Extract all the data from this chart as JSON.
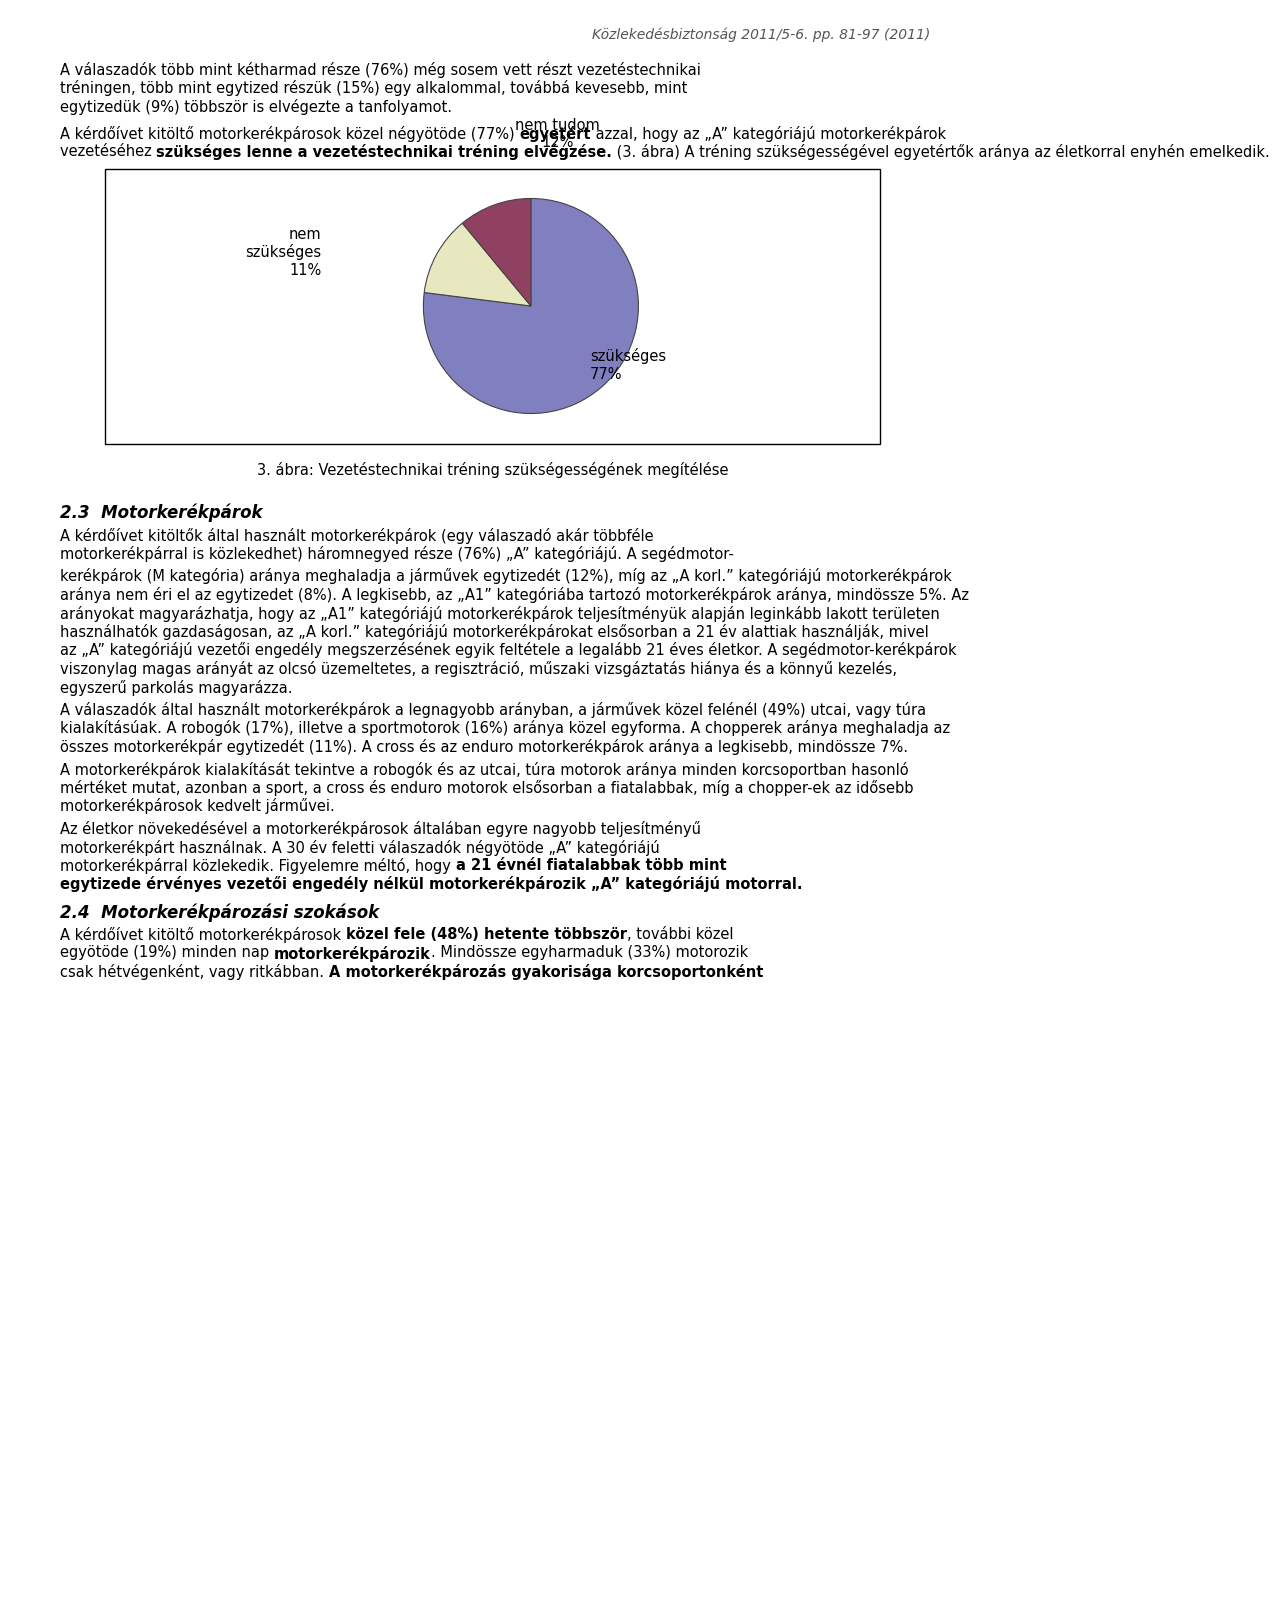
{
  "title_header": "Közlekedésbiztonság 2011/5-6. pp. 81-97 (2011)",
  "p1_lines": [
    "A válaszadók több mint kétharmad része (76%) még sosem vett részt vezetéstechnikai",
    "tréningen, több mint egytized részük (15%) egy alkalommal, továbbá kevesebb, mint",
    "egytizedük (9%) többször is elvégezte a tanfolyamot."
  ],
  "p2_line1_normal": "A kérdőívet kitöltő motorkerékpárosok közel négyötöde (77%) ",
  "p2_line1_bold": "egyetért",
  "p2_line1_normal2": " azzal, hogy az „A” kategóriájú motorkerékpárok",
  "p2_line2_normal": "vezetéséhez ",
  "p2_line2_bold": "szükséges lenne a vezetéstechnikai tréning elvégzése.",
  "p2_line2_normal2": " (3. ábra) A tréning szükségességével egyetértők aránya az életkorral enyhén emelkedik.",
  "pie_values": [
    77,
    12,
    11
  ],
  "pie_colors": [
    "#8080c0",
    "#e8e8c0",
    "#904060"
  ],
  "pie_label_szukseges": "szükséges\n77%",
  "pie_label_nemtudom": "nem tudom\n12%",
  "pie_label_nemszukseges": "nem\nszükséges\n11%",
  "chart_caption": "3. ábra: Vezetéstechnikai tréning szükségességének megítélése",
  "sec23_num": "2.3",
  "sec23_title": "Motorkerékpárok",
  "sec23_p1_lines": [
    "A kérdőívet kitöltők által használt motorkerékpárok (egy válaszadó akár többféle",
    "motorkerékpárral is közlekedhet) háromnegyed része (76%) „A” kategóriájú. A segédmotor-"
  ],
  "sec23_p2_lines": [
    "kerékpárok (M kategória) aránya meghaladja a járművek egytizedét (12%), míg az „A korl.” kategóriájú motorkerékpárok",
    "aránya nem éri el az egytizedet (8%). A legkisebb, az „A1” kategóriába tartozó motorkerékpárok aránya, mindössze 5%. Az",
    "arányokat magyarázhatja, hogy az „A1” kategóriájú motorkerékpárok teljesítményük alapján leginkább lakott területen",
    "használhatók gazdaságosan, az „A korl.” kategóriájú motorkerékpárokat elsősorban a 21 év alattiak használják, mivel",
    "az „A” kategóriájú vezetői engedély megszerzésének egyik feltétele a legalább 21 éves életkor. A segédmotor-kerékpárok",
    "viszonylag magas arányát az olcsó üzemeltetes, a regisztráció, műszaki vizsgáztatás hiánya és a könnyű kezelés,",
    "egyszerű parkolás magyarázza."
  ],
  "sec23_p3_lines": [
    "A válaszadók által használt motorkerékpárok a legnagyobb arányban, a járművek közel felénél (49%) utcai, vagy túra",
    "kialakításúak. A robogók (17%), illetve a sportmotorok (16%) aránya közel egyforma. A chopperek aránya meghaladja az",
    "összes motorkerékpár egytizedét (11%). A cross és az enduro motorkerékpárok aránya a legkisebb, mindössze 7%."
  ],
  "sec23_p4_lines": [
    "A motorkerékpárok kialakítását tekintve a robogók és az utcai, túra motorok aránya minden korcsoportban hasonló",
    "mértéket mutat, azonban a sport, a cross és enduro motorok elsősorban a fiatalabbak, míg a chopper-ek az idősebb",
    "motorkerékpárosok kedvelt járművei."
  ],
  "sec23_p5_line1": "Az életkor növekedésével a motorkerékpárosok általában egyre nagyobb teljesítményű",
  "sec23_p5_line2_normal": "motorkerékpárt használnak. A 30 év feletti válaszadók négyötöde „A” kategóriájú",
  "sec23_p5_line3_normal": "motorkerékpárral közlekedik. Figyelemre méltó, hogy ",
  "sec23_p5_line3_bold": "a 21 évnél fiatalabbak több mint",
  "sec23_p5_line4_bold": "egytizede érvényes vezetői engedély nélkül motorkerékpározik „A” kategóriájú motorral.",
  "sec24_num": "2.4",
  "sec24_title": "Motorkerékpározási szokások",
  "sec24_p1_line1_normal": "A kérdőívet kitöltő motorkerékpárosok ",
  "sec24_p1_line1_bold": "közel fele (48%) hetente többször",
  "sec24_p1_line1_normal2": ", további közel",
  "sec24_p1_line2_normal": "egyötöde (19%) minden nap ",
  "sec24_p1_line2_bold": "motorkerékpározik",
  "sec24_p1_line2_normal2": ". Mindössze egyharmaduk (33%) motorozik",
  "sec24_p1_line3_normal": "csak hétvégenként, vagy ritkábban. ",
  "sec24_p1_line3_bold": "A motorkerékpározás gyakorisága korcsoportonként",
  "background_color": "#ffffff",
  "text_color": "#000000"
}
